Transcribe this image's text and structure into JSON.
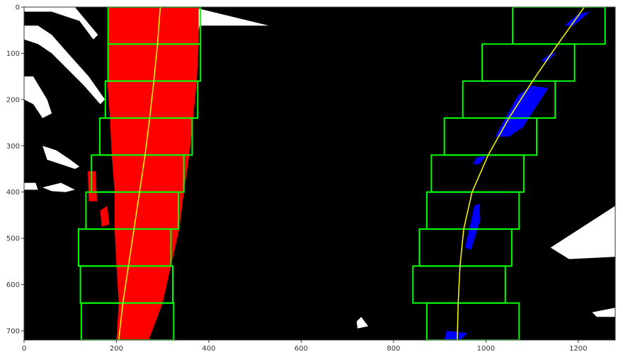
{
  "chart_data": {
    "type": "scatter",
    "title": "",
    "xlabel": "",
    "ylabel": "",
    "xlim": [
      0,
      1280
    ],
    "ylim": [
      720,
      0
    ],
    "y_inverted": true,
    "grid": false,
    "xticks": [
      0,
      200,
      400,
      600,
      800,
      1000,
      1200
    ],
    "yticks": [
      0,
      100,
      200,
      300,
      400,
      500,
      600,
      700
    ],
    "colors": {
      "background": "#000000",
      "edge_pixels": "#ffffff",
      "left_lane_pixels": "#ff0000",
      "right_lane_pixels": "#0000ff",
      "search_windows": "#00ff00",
      "fit_curve": "#ffff00",
      "axes": "#333333"
    },
    "left_windows": [
      {
        "x0": 182,
        "x1": 382,
        "y0": 0,
        "y1": 80
      },
      {
        "x0": 182,
        "x1": 382,
        "y0": 80,
        "y1": 160
      },
      {
        "x0": 176,
        "x1": 376,
        "y0": 160,
        "y1": 240
      },
      {
        "x0": 164,
        "x1": 364,
        "y0": 240,
        "y1": 320
      },
      {
        "x0": 146,
        "x1": 346,
        "y0": 320,
        "y1": 400
      },
      {
        "x0": 134,
        "x1": 334,
        "y0": 400,
        "y1": 480
      },
      {
        "x0": 118,
        "x1": 318,
        "y0": 480,
        "y1": 560
      },
      {
        "x0": 122,
        "x1": 322,
        "y0": 560,
        "y1": 640
      },
      {
        "x0": 124,
        "x1": 324,
        "y0": 640,
        "y1": 720
      }
    ],
    "right_windows": [
      {
        "x0": 1058,
        "x1": 1258,
        "y0": 0,
        "y1": 80
      },
      {
        "x0": 992,
        "x1": 1192,
        "y0": 80,
        "y1": 160
      },
      {
        "x0": 950,
        "x1": 1150,
        "y0": 160,
        "y1": 240
      },
      {
        "x0": 910,
        "x1": 1110,
        "y0": 240,
        "y1": 320
      },
      {
        "x0": 882,
        "x1": 1082,
        "y0": 320,
        "y1": 400
      },
      {
        "x0": 872,
        "x1": 1072,
        "y0": 400,
        "y1": 480
      },
      {
        "x0": 856,
        "x1": 1056,
        "y0": 480,
        "y1": 560
      },
      {
        "x0": 842,
        "x1": 1042,
        "y0": 560,
        "y1": 640
      },
      {
        "x0": 872,
        "x1": 1072,
        "y0": 640,
        "y1": 720
      }
    ],
    "left_fit_curve": {
      "x": [
        295,
        289,
        281,
        272,
        262,
        250,
        238,
        226,
        214,
        205
      ],
      "y": [
        0,
        80,
        160,
        240,
        320,
        400,
        480,
        560,
        640,
        720
      ]
    },
    "right_fit_curve": {
      "x": [
        1213,
        1156,
        1101,
        1050,
        1005,
        970,
        952,
        944,
        940,
        938
      ],
      "y": [
        0,
        80,
        160,
        240,
        320,
        400,
        480,
        560,
        640,
        720
      ]
    },
    "left_lane_pixels": [
      [
        [
          238,
          0
        ],
        [
          378,
          0
        ],
        [
          378,
          80
        ],
        [
          374,
          160
        ],
        [
          366,
          240
        ],
        [
          358,
          320
        ],
        [
          346,
          400
        ],
        [
          336,
          480
        ],
        [
          318,
          560
        ],
        [
          300,
          640
        ],
        [
          270,
          720
        ],
        [
          200,
          720
        ],
        [
          205,
          640
        ],
        [
          200,
          560
        ],
        [
          196,
          480
        ],
        [
          196,
          400
        ],
        [
          190,
          320
        ],
        [
          186,
          240
        ],
        [
          180,
          160
        ],
        [
          180,
          80
        ],
        [
          182,
          0
        ]
      ],
      [
        [
          138,
          355
        ],
        [
          155,
          355
        ],
        [
          158,
          420
        ],
        [
          140,
          420
        ]
      ],
      [
        [
          165,
          440
        ],
        [
          180,
          430
        ],
        [
          185,
          470
        ],
        [
          168,
          475
        ]
      ]
    ],
    "right_lane_pixels": [
      [
        [
          1200,
          15
        ],
        [
          1225,
          10
        ],
        [
          1190,
          40
        ],
        [
          1170,
          40
        ]
      ],
      [
        [
          1140,
          100
        ],
        [
          1152,
          100
        ],
        [
          1130,
          120
        ],
        [
          1120,
          116
        ]
      ],
      [
        [
          1070,
          190
        ],
        [
          1100,
          170
        ],
        [
          1135,
          175
        ],
        [
          1080,
          260
        ],
        [
          1050,
          280
        ],
        [
          1020,
          280
        ]
      ],
      [
        [
          980,
          325
        ],
        [
          1000,
          322
        ],
        [
          985,
          340
        ],
        [
          972,
          340
        ]
      ],
      [
        [
          975,
          430
        ],
        [
          985,
          425
        ],
        [
          988,
          460
        ],
        [
          968,
          525
        ],
        [
          955,
          520
        ]
      ],
      [
        [
          915,
          700
        ],
        [
          960,
          705
        ],
        [
          945,
          720
        ],
        [
          910,
          720
        ]
      ]
    ],
    "edge_pixels": [
      [
        [
          0,
          0
        ],
        [
          110,
          0
        ],
        [
          160,
          60
        ],
        [
          150,
          70
        ],
        [
          120,
          30
        ],
        [
          90,
          20
        ],
        [
          60,
          10
        ],
        [
          0,
          10
        ]
      ],
      [
        [
          0,
          40
        ],
        [
          30,
          40
        ],
        [
          60,
          60
        ],
        [
          95,
          100
        ],
        [
          140,
          150
        ],
        [
          175,
          200
        ],
        [
          165,
          210
        ],
        [
          130,
          170
        ],
        [
          90,
          130
        ],
        [
          60,
          100
        ],
        [
          30,
          80
        ],
        [
          0,
          70
        ]
      ],
      [
        [
          0,
          150
        ],
        [
          20,
          150
        ],
        [
          50,
          200
        ],
        [
          60,
          230
        ],
        [
          40,
          240
        ],
        [
          20,
          210
        ],
        [
          0,
          200
        ]
      ],
      [
        [
          40,
          300
        ],
        [
          70,
          310
        ],
        [
          100,
          330
        ],
        [
          120,
          345
        ],
        [
          110,
          350
        ],
        [
          80,
          340
        ],
        [
          50,
          330
        ]
      ],
      [
        [
          40,
          390
        ],
        [
          80,
          380
        ],
        [
          110,
          395
        ],
        [
          90,
          400
        ],
        [
          60,
          398
        ]
      ],
      [
        [
          0,
          380
        ],
        [
          25,
          380
        ],
        [
          30,
          395
        ],
        [
          0,
          395
        ]
      ],
      [
        [
          280,
          0
        ],
        [
          365,
          0
        ],
        [
          530,
          40
        ],
        [
          380,
          40
        ],
        [
          370,
          100
        ],
        [
          325,
          260
        ],
        [
          290,
          200
        ],
        [
          285,
          120
        ]
      ],
      [
        [
          1140,
          520
        ],
        [
          1280,
          430
        ],
        [
          1280,
          540
        ],
        [
          1180,
          545
        ]
      ],
      [
        [
          1240,
          500
        ],
        [
          1270,
          480
        ],
        [
          1272,
          500
        ],
        [
          1245,
          510
        ]
      ],
      [
        [
          720,
          680
        ],
        [
          730,
          670
        ],
        [
          745,
          690
        ],
        [
          722,
          695
        ]
      ],
      [
        [
          1230,
          660
        ],
        [
          1280,
          650
        ],
        [
          1280,
          670
        ],
        [
          1240,
          670
        ]
      ]
    ]
  }
}
